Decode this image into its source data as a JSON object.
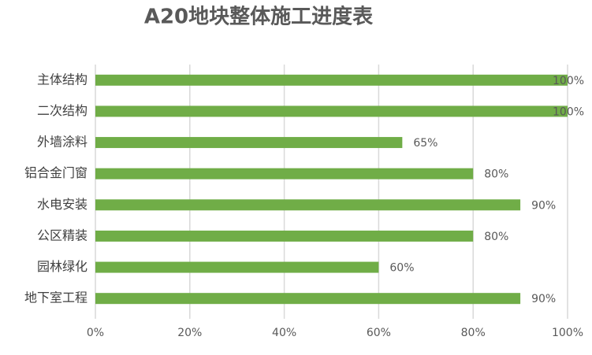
{
  "chart_data": {
    "type": "bar",
    "orientation": "horizontal",
    "title": "A20地块整体施工进度表",
    "categories": [
      "主体结构",
      "二次结构",
      "外墙涂料",
      "铝合金门窗",
      "水电安装",
      "公区精装",
      "园林绿化",
      "地下室工程"
    ],
    "values": [
      100,
      100,
      65,
      80,
      90,
      80,
      60,
      90
    ],
    "value_labels": [
      "100%",
      "100%",
      "65%",
      "80%",
      "90%",
      "80%",
      "60%",
      "90%"
    ],
    "color": "#70ad47",
    "xlim": [
      0,
      100
    ],
    "xticks": [
      {
        "value": 0,
        "label": "0%"
      },
      {
        "value": 20,
        "label": "20%"
      },
      {
        "value": 40,
        "label": "40%"
      },
      {
        "value": 60,
        "label": "60%"
      },
      {
        "value": 80,
        "label": "80%"
      },
      {
        "value": 100,
        "label": "100%"
      }
    ],
    "grid": true
  }
}
